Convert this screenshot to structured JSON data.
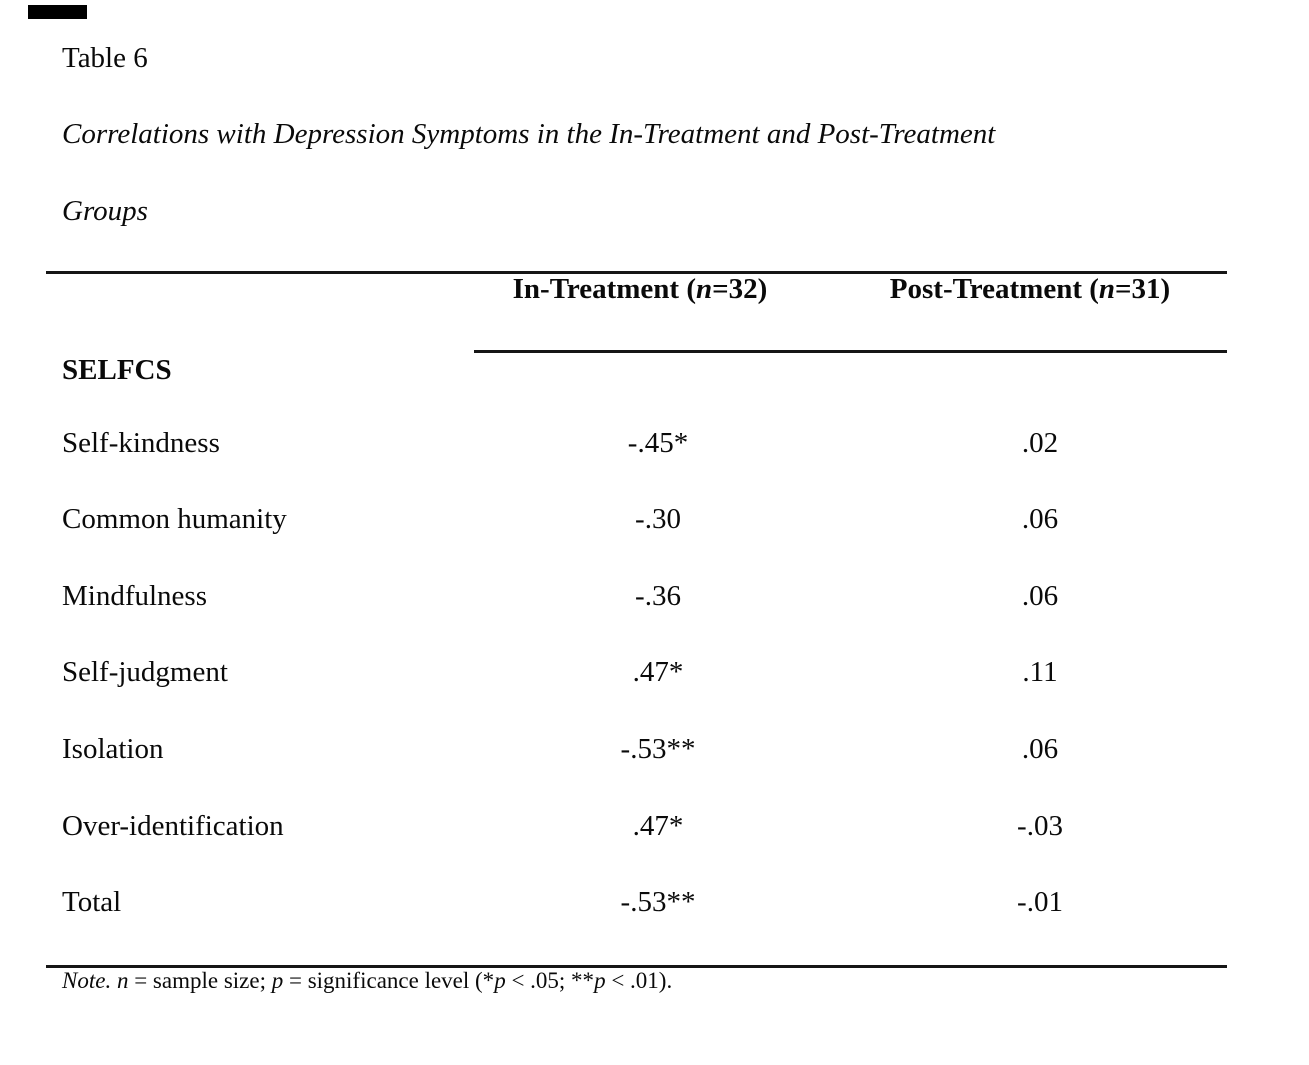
{
  "colors": {
    "background": "#ffffff",
    "text": "#0a0a0a",
    "rule": "#161616"
  },
  "page": {
    "title": "Table 6",
    "caption_line1": "Correlations with Depression Symptoms in the In-Treatment and Post-Treatment",
    "caption_line2": "Groups"
  },
  "table": {
    "columns": [
      {
        "label": "In-Treatment (n=32)",
        "parts": [
          {
            "t": "In-Treatment ("
          },
          {
            "t": "n",
            "i": true
          },
          {
            "t": "=32)"
          }
        ]
      },
      {
        "label": "Post-Treatment (n=31)",
        "parts": [
          {
            "t": "Post-Treatment ("
          },
          {
            "t": "n",
            "i": true
          },
          {
            "t": "=31)"
          }
        ]
      }
    ],
    "section_label": "SELFCS",
    "rows": [
      {
        "label": "Self-kindness",
        "in_treatment": "-.45*",
        "post_treatment": ".02"
      },
      {
        "label": "Common humanity",
        "in_treatment": "-.30",
        "post_treatment": ".06"
      },
      {
        "label": "Mindfulness",
        "in_treatment": "-.36",
        "post_treatment": ".06"
      },
      {
        "label": "Self-judgment",
        "in_treatment": ".47*",
        "post_treatment": ".11"
      },
      {
        "label": "Isolation",
        "in_treatment": "-.53**",
        "post_treatment": ".06"
      },
      {
        "label": "Over-identification",
        "in_treatment": ".47*",
        "post_treatment": "-.03"
      },
      {
        "label": "Total",
        "in_treatment": "-.53**",
        "post_treatment": "-.01"
      }
    ]
  },
  "note": {
    "text": "Note. n = sample size; p = significance level (*p < .05; **p < .01).",
    "parts": [
      {
        "t": "Note.",
        "i": true
      },
      {
        "t": " "
      },
      {
        "t": "n",
        "i": true
      },
      {
        "t": " = sample size; "
      },
      {
        "t": "p",
        "i": true
      },
      {
        "t": " = significance level (*"
      },
      {
        "t": "p",
        "i": true
      },
      {
        "t": " < .05; **"
      },
      {
        "t": "p",
        "i": true
      },
      {
        "t": " < .01)."
      }
    ]
  }
}
